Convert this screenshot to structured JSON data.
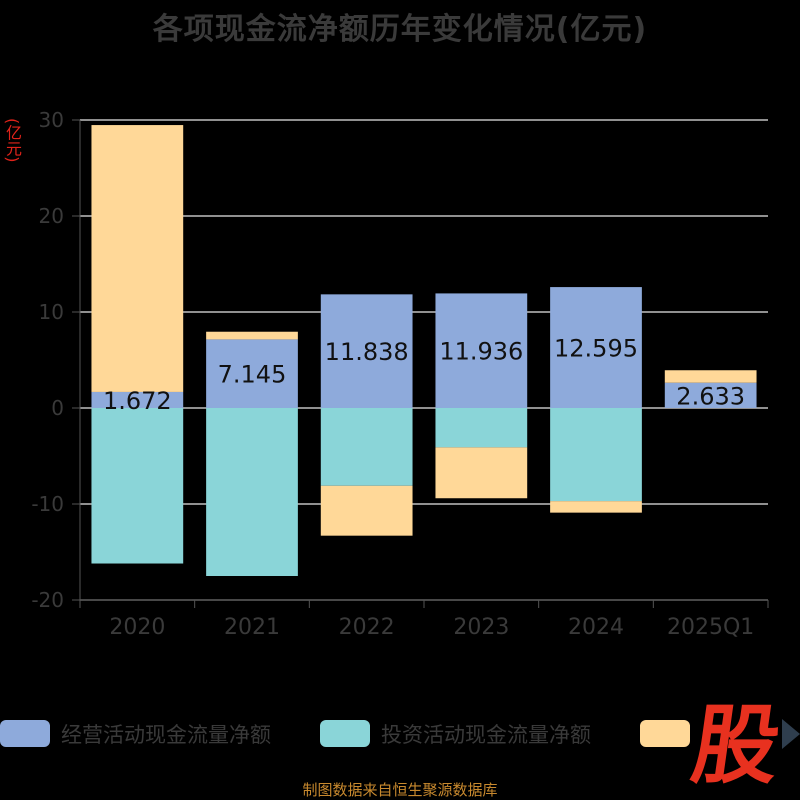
{
  "title": "各项现金流净额历年变化情况(亿元)",
  "unit_label": "(亿元)",
  "source": "制图数据来自恒生聚源数据库",
  "logo_text": "股",
  "chart_data": {
    "type": "bar",
    "stacked": true,
    "title": "各项现金流净额历年变化情况(亿元)",
    "ylabel": "(亿元)",
    "xlabel": "",
    "categories": [
      "2020",
      "2021",
      "2022",
      "2023",
      "2024",
      "2025Q1"
    ],
    "ylim": [
      -20,
      30
    ],
    "yticks": [
      -20,
      -10,
      0,
      10,
      20,
      30
    ],
    "grid": true,
    "legend_position": "bottom",
    "series": [
      {
        "name": "经营活动现金流量净额",
        "color": "#8eaadb",
        "values": [
          1.672,
          7.145,
          11.838,
          11.936,
          12.595,
          2.633
        ],
        "labels": [
          "1.672",
          "7.145",
          "11.838",
          "11.936",
          "12.595",
          "2.633"
        ]
      },
      {
        "name": "投资活动现金流量净额",
        "color": "#8ad5d8",
        "values": [
          -16.2,
          -17.5,
          -8.1,
          -4.1,
          -9.7,
          0
        ]
      },
      {
        "name": "",
        "color": "#ffd898",
        "values": [
          27.8,
          0.8,
          -5.2,
          -5.3,
          -1.2,
          1.3
        ]
      }
    ]
  }
}
